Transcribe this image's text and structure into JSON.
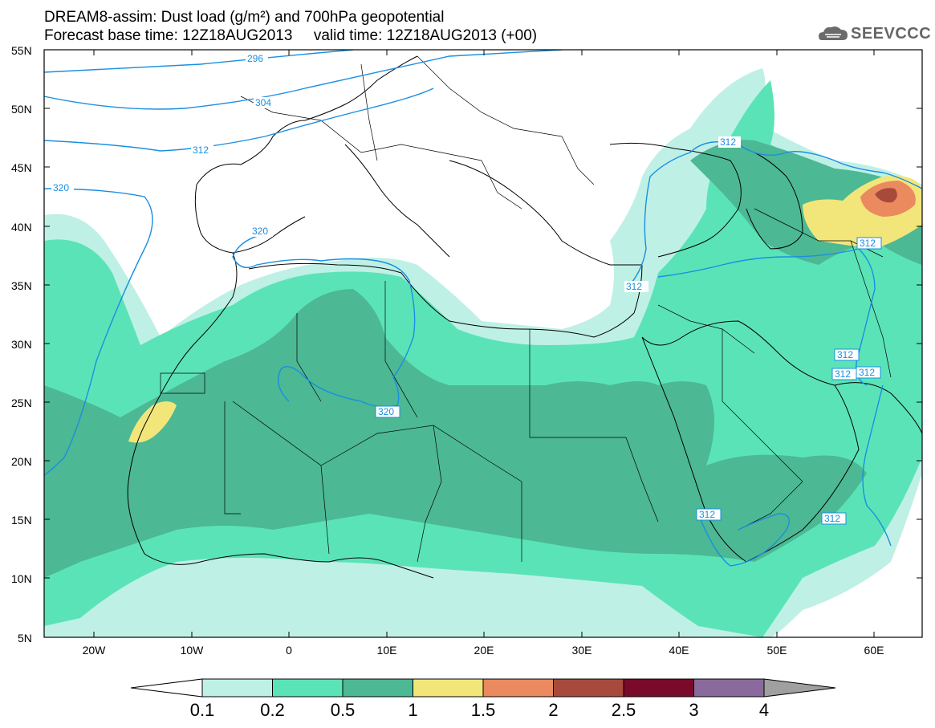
{
  "title": {
    "line1": "DREAM8-assim: Dust load (g/m²) and 700hPa geopotential",
    "line2": "Forecast base time: 12Z18AUG2013     valid time: 12Z18AUG2013 (+00)"
  },
  "logo": {
    "text": "SEEVCCC"
  },
  "axes": {
    "lat_labels": [
      "55N",
      "50N",
      "45N",
      "40N",
      "35N",
      "30N",
      "25N",
      "20N",
      "15N",
      "10N",
      "5N"
    ],
    "lon_labels": [
      "20W",
      "10W",
      "0",
      "10E",
      "20E",
      "30E",
      "40E",
      "50E",
      "60E"
    ]
  },
  "colorbar": {
    "labels": [
      "0.1",
      "0.2",
      "0.5",
      "1",
      "1.5",
      "2",
      "2.5",
      "3",
      "4"
    ],
    "colors": [
      "#ffffff",
      "#bff0e6",
      "#5be3b8",
      "#4cb894",
      "#f2e67a",
      "#ea8a5e",
      "#a84a3b",
      "#7a0a2a",
      "#8a6a9c",
      "#a0a0a0"
    ]
  },
  "contour_labels": [
    "296",
    "304",
    "312",
    "320",
    "320",
    "320",
    "312",
    "312",
    "312",
    "312",
    "312",
    "312",
    "312",
    "312"
  ],
  "colors": {
    "contour": "#1a8fe0",
    "border": "#000000"
  }
}
